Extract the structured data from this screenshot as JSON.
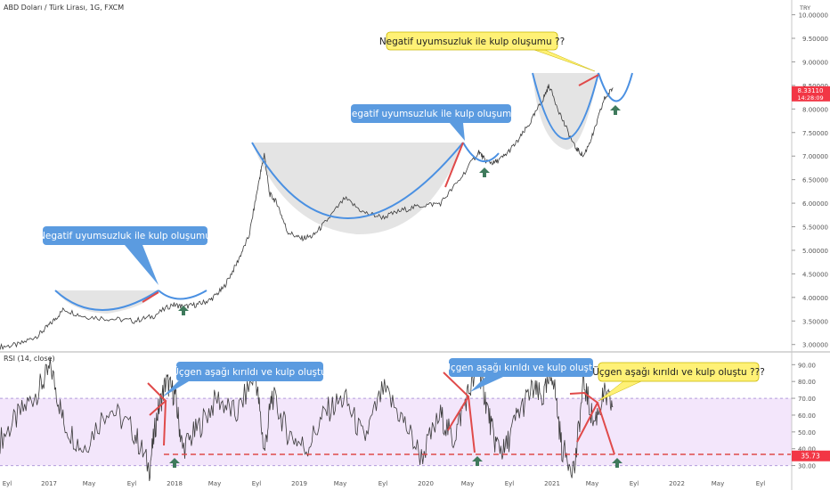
{
  "chart_data": [
    {
      "type": "line",
      "title": "ABD Doları / Türk Lirası, 1G, FXCM",
      "currency": "TRY",
      "y_ticks": [
        "10.00000",
        "9.50000",
        "9.00000",
        "8.50000",
        "8.00000",
        "7.50000",
        "7.00000",
        "6.50000",
        "6.00000",
        "5.50000",
        "5.00000",
        "4.50000",
        "4.00000",
        "3.50000",
        "3.00000"
      ],
      "ylim": [
        2.9,
        10.2
      ],
      "last_price": "8.33110",
      "last_time": "14:28:09",
      "last_price_value": 8.3311,
      "x_ticks": [
        "Eyl",
        "2017",
        "May",
        "Eyl",
        "2018",
        "May",
        "Eyl",
        "2019",
        "May",
        "Eyl",
        "2020",
        "May",
        "Eyl",
        "2021",
        "May",
        "Eyl",
        "2022",
        "May",
        "Eyl"
      ],
      "series": [
        {
          "x": [
            2016.55,
            2016.7,
            2016.85,
            2016.95,
            2017.05,
            2017.2,
            2017.4,
            2017.6,
            2017.75,
            2017.9,
            2017.99,
            2018.1,
            2018.2,
            2018.3,
            2018.4,
            2018.5,
            2018.58,
            2018.62,
            2018.66,
            2018.72,
            2018.8,
            2018.9,
            2019.0,
            2019.1,
            2019.25,
            2019.4,
            2019.55,
            2019.7,
            2019.85,
            2020.0,
            2020.15,
            2020.3,
            2020.35,
            2020.42,
            2020.5,
            2020.6,
            2020.7,
            2020.8,
            2020.85,
            2020.95,
            2021.05,
            2021.12,
            2021.2,
            2021.28,
            2021.35
          ],
          "values": [
            2.95,
            3.0,
            3.2,
            3.45,
            3.75,
            3.6,
            3.55,
            3.5,
            3.6,
            3.85,
            3.8,
            3.85,
            3.95,
            4.2,
            4.7,
            5.3,
            6.5,
            7.05,
            6.2,
            6.0,
            5.4,
            5.25,
            5.3,
            5.6,
            6.1,
            5.8,
            5.7,
            5.85,
            5.95,
            6.0,
            6.5,
            7.1,
            6.9,
            6.85,
            7.0,
            7.3,
            7.7,
            8.2,
            8.5,
            7.8,
            7.2,
            7.0,
            7.5,
            8.2,
            8.45
          ]
        }
      ],
      "annotations": [
        "Negatif uyumsuzluk ile kulp oluşumu",
        "Negatif uyumsuzluk ile kulp oluşumu",
        "Negatif uyumsuzluk ile kulp oluşumu ??"
      ]
    },
    {
      "type": "line",
      "title": "RSI (14, close)",
      "y_ticks": [
        "90.00",
        "80.00",
        "70.00",
        "60.00",
        "50.00",
        "40.00",
        "30.00"
      ],
      "ylim": [
        25,
        96
      ],
      "band": [
        30,
        70
      ],
      "last_value": "35.73",
      "last_value_num": 35.73,
      "series": [
        {
          "x": [
            2016.55,
            2016.7,
            2016.85,
            2016.95,
            2017.05,
            2017.2,
            2017.4,
            2017.6,
            2017.72,
            2017.78,
            2017.85,
            2017.92,
            2017.98,
            2018.1,
            2018.25,
            2018.4,
            2018.55,
            2018.62,
            2018.68,
            2018.8,
            2018.95,
            2019.1,
            2019.25,
            2019.4,
            2019.55,
            2019.7,
            2019.85,
            2020.0,
            2020.1,
            2020.2,
            2020.3,
            2020.35,
            2020.42,
            2020.5,
            2020.6,
            2020.72,
            2020.8,
            2020.88,
            2020.95,
            2021.05,
            2021.12,
            2021.2,
            2021.28,
            2021.35
          ],
          "values": [
            45,
            60,
            75,
            88,
            55,
            40,
            65,
            50,
            28,
            60,
            80,
            72,
            40,
            52,
            70,
            60,
            85,
            38,
            72,
            50,
            40,
            62,
            70,
            45,
            75,
            58,
            35,
            60,
            45,
            70,
            88,
            70,
            45,
            38,
            60,
            75,
            70,
            85,
            40,
            28,
            80,
            55,
            72,
            65
          ]
        }
      ],
      "annotations": [
        "Üçgen aşağı kırıldı ve kulp oluştu",
        "Üçgen aşağı kırıldı ve kulp oluştu",
        "Üçgen aşağı kırıldı ve kulp oluştu ???"
      ]
    }
  ]
}
